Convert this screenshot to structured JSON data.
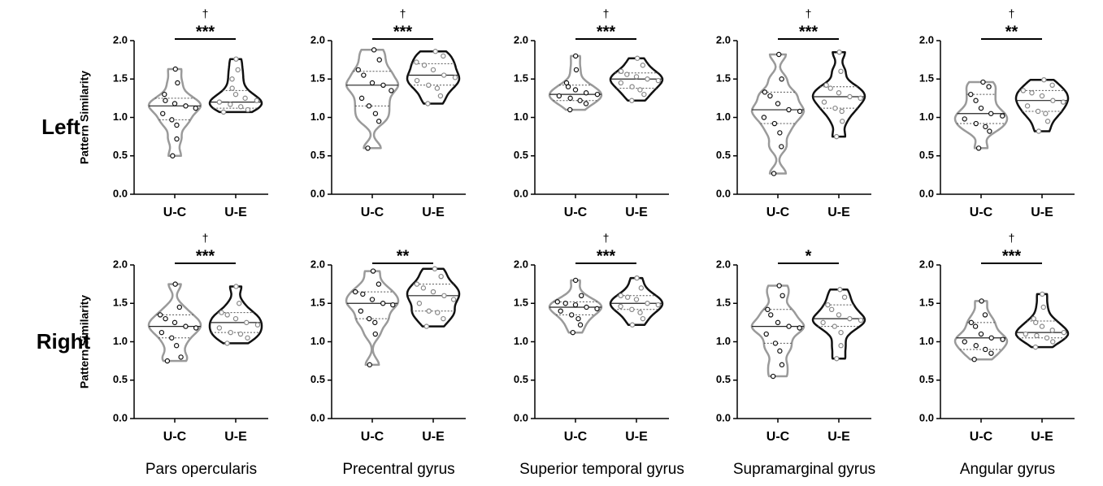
{
  "chart_data": [
    {
      "type": "violin",
      "row_label": "Left",
      "ylabel": "Pattern Similarity",
      "categories": [
        "U-C",
        "U-E"
      ],
      "ylim": [
        0,
        2
      ],
      "yticks": [
        {
          "value": 0,
          "label": "0.0"
        },
        {
          "value": 0.5,
          "label": "0.5"
        },
        {
          "value": 1,
          "label": "1.0"
        },
        {
          "value": 1.5,
          "label": "1.5"
        },
        {
          "value": 2,
          "label": "2.0"
        }
      ],
      "significance": "***",
      "marker": "†",
      "series": [
        {
          "name": "U-C",
          "color": "#9a9a9a",
          "point_color": "#111",
          "points": [
            0.5,
            0.72,
            0.9,
            0.97,
            1.05,
            1.12,
            1.15,
            1.18,
            1.22,
            1.3,
            1.45,
            1.63
          ],
          "median": 1.15,
          "quartiles": [
            0.97,
            1.25
          ]
        },
        {
          "name": "U-E",
          "color": "#111",
          "point_color": "#888",
          "points": [
            1.07,
            1.1,
            1.14,
            1.17,
            1.2,
            1.22,
            1.25,
            1.3,
            1.38,
            1.5,
            1.62,
            1.76
          ],
          "median": 1.2,
          "quartiles": [
            1.12,
            1.35
          ]
        }
      ]
    },
    {
      "type": "violin",
      "categories": [
        "U-C",
        "U-E"
      ],
      "ylim": [
        0,
        2
      ],
      "yticks": [
        {
          "value": 0,
          "label": "0.0"
        },
        {
          "value": 0.5,
          "label": "0.5"
        },
        {
          "value": 1,
          "label": "1.0"
        },
        {
          "value": 1.5,
          "label": "1.5"
        },
        {
          "value": 2,
          "label": "2.0"
        }
      ],
      "significance": "***",
      "marker": "†",
      "series": [
        {
          "name": "U-C",
          "color": "#9a9a9a",
          "point_color": "#111",
          "points": [
            0.6,
            0.95,
            1.05,
            1.15,
            1.25,
            1.35,
            1.42,
            1.45,
            1.55,
            1.62,
            1.75,
            1.88
          ],
          "median": 1.42,
          "quartiles": [
            1.15,
            1.6
          ]
        },
        {
          "name": "U-E",
          "color": "#111",
          "point_color": "#888",
          "points": [
            1.18,
            1.28,
            1.38,
            1.42,
            1.48,
            1.52,
            1.55,
            1.62,
            1.68,
            1.72,
            1.8,
            1.86
          ],
          "median": 1.55,
          "quartiles": [
            1.42,
            1.7
          ]
        }
      ]
    },
    {
      "type": "violin",
      "categories": [
        "U-C",
        "U-E"
      ],
      "ylim": [
        0,
        2
      ],
      "yticks": [
        {
          "value": 0,
          "label": "0.0"
        },
        {
          "value": 0.5,
          "label": "0.5"
        },
        {
          "value": 1,
          "label": "1.0"
        },
        {
          "value": 1.5,
          "label": "1.5"
        },
        {
          "value": 2,
          "label": "2.0"
        }
      ],
      "significance": "***",
      "marker": "†",
      "series": [
        {
          "name": "U-C",
          "color": "#9a9a9a",
          "point_color": "#111",
          "points": [
            1.1,
            1.18,
            1.22,
            1.25,
            1.28,
            1.3,
            1.32,
            1.36,
            1.4,
            1.45,
            1.62,
            1.8
          ],
          "median": 1.3,
          "quartiles": [
            1.22,
            1.42
          ]
        },
        {
          "name": "U-E",
          "color": "#111",
          "point_color": "#888",
          "points": [
            1.22,
            1.3,
            1.36,
            1.4,
            1.45,
            1.48,
            1.5,
            1.53,
            1.56,
            1.6,
            1.68,
            1.77
          ],
          "median": 1.5,
          "quartiles": [
            1.38,
            1.58
          ]
        }
      ]
    },
    {
      "type": "violin",
      "categories": [
        "U-C",
        "U-E"
      ],
      "ylim": [
        0,
        2
      ],
      "yticks": [
        {
          "value": 0,
          "label": "0.0"
        },
        {
          "value": 0.5,
          "label": "0.5"
        },
        {
          "value": 1,
          "label": "1.0"
        },
        {
          "value": 1.5,
          "label": "1.5"
        },
        {
          "value": 2,
          "label": "2.0"
        }
      ],
      "significance": "***",
      "marker": "†",
      "series": [
        {
          "name": "U-C",
          "color": "#9a9a9a",
          "point_color": "#111",
          "points": [
            0.27,
            0.62,
            0.8,
            0.92,
            1.0,
            1.08,
            1.1,
            1.18,
            1.28,
            1.33,
            1.5,
            1.82
          ],
          "median": 1.1,
          "quartiles": [
            0.92,
            1.33
          ]
        },
        {
          "name": "U-E",
          "color": "#111",
          "point_color": "#888",
          "points": [
            0.75,
            0.95,
            1.08,
            1.12,
            1.2,
            1.25,
            1.27,
            1.32,
            1.38,
            1.42,
            1.6,
            1.85
          ],
          "median": 1.27,
          "quartiles": [
            1.12,
            1.4
          ]
        }
      ]
    },
    {
      "type": "violin",
      "categories": [
        "U-C",
        "U-E"
      ],
      "ylim": [
        0,
        2
      ],
      "yticks": [
        {
          "value": 0,
          "label": "0.0"
        },
        {
          "value": 0.5,
          "label": "0.5"
        },
        {
          "value": 1,
          "label": "1.0"
        },
        {
          "value": 1.5,
          "label": "1.5"
        },
        {
          "value": 2,
          "label": "2.0"
        }
      ],
      "significance": "**",
      "marker": "†",
      "series": [
        {
          "name": "U-C",
          "color": "#9a9a9a",
          "point_color": "#111",
          "points": [
            0.6,
            0.82,
            0.88,
            0.92,
            0.98,
            1.02,
            1.05,
            1.12,
            1.22,
            1.3,
            1.4,
            1.46
          ],
          "median": 1.05,
          "quartiles": [
            0.92,
            1.3
          ]
        },
        {
          "name": "U-E",
          "color": "#111",
          "point_color": "#888",
          "points": [
            0.82,
            0.95,
            1.05,
            1.08,
            1.15,
            1.2,
            1.22,
            1.28,
            1.32,
            1.35,
            1.42,
            1.49
          ],
          "median": 1.22,
          "quartiles": [
            1.08,
            1.35
          ]
        }
      ]
    },
    {
      "type": "violin",
      "row_label": "Right",
      "ylabel": "Pattern Similarity",
      "xlabel": "Pars opercularis",
      "categories": [
        "U-C",
        "U-E"
      ],
      "ylim": [
        0,
        2
      ],
      "yticks": [
        {
          "value": 0,
          "label": "0.0"
        },
        {
          "value": 0.5,
          "label": "0.5"
        },
        {
          "value": 1,
          "label": "1.0"
        },
        {
          "value": 1.5,
          "label": "1.5"
        },
        {
          "value": 2,
          "label": "2.0"
        }
      ],
      "significance": "***",
      "marker": "†",
      "series": [
        {
          "name": "U-C",
          "color": "#9a9a9a",
          "point_color": "#111",
          "points": [
            0.75,
            0.8,
            0.95,
            1.05,
            1.12,
            1.18,
            1.2,
            1.25,
            1.3,
            1.35,
            1.45,
            1.75
          ],
          "median": 1.2,
          "quartiles": [
            1.05,
            1.35
          ]
        },
        {
          "name": "U-E",
          "color": "#111",
          "point_color": "#888",
          "points": [
            0.98,
            1.05,
            1.1,
            1.12,
            1.18,
            1.22,
            1.25,
            1.3,
            1.35,
            1.38,
            1.5,
            1.72
          ],
          "median": 1.25,
          "quartiles": [
            1.12,
            1.38
          ]
        }
      ]
    },
    {
      "type": "violin",
      "xlabel": "Precentral gyrus",
      "categories": [
        "U-C",
        "U-E"
      ],
      "ylim": [
        0,
        2
      ],
      "yticks": [
        {
          "value": 0,
          "label": "0.0"
        },
        {
          "value": 0.5,
          "label": "0.5"
        },
        {
          "value": 1,
          "label": "1.0"
        },
        {
          "value": 1.5,
          "label": "1.5"
        },
        {
          "value": 2,
          "label": "2.0"
        }
      ],
      "significance": "**",
      "series": [
        {
          "name": "U-C",
          "color": "#9a9a9a",
          "point_color": "#111",
          "points": [
            0.7,
            1.1,
            1.25,
            1.3,
            1.4,
            1.48,
            1.5,
            1.55,
            1.62,
            1.65,
            1.75,
            1.92
          ],
          "median": 1.5,
          "quartiles": [
            1.3,
            1.65
          ]
        },
        {
          "name": "U-E",
          "color": "#111",
          "point_color": "#888",
          "points": [
            1.2,
            1.3,
            1.38,
            1.4,
            1.5,
            1.55,
            1.6,
            1.65,
            1.7,
            1.75,
            1.85,
            1.95
          ],
          "median": 1.6,
          "quartiles": [
            1.4,
            1.75
          ]
        }
      ]
    },
    {
      "type": "violin",
      "xlabel": "Superior temporal gyrus",
      "categories": [
        "U-C",
        "U-E"
      ],
      "ylim": [
        0,
        2
      ],
      "yticks": [
        {
          "value": 0,
          "label": "0.0"
        },
        {
          "value": 0.5,
          "label": "0.5"
        },
        {
          "value": 1,
          "label": "1.0"
        },
        {
          "value": 1.5,
          "label": "1.5"
        },
        {
          "value": 2,
          "label": "2.0"
        }
      ],
      "significance": "***",
      "marker": "†",
      "series": [
        {
          "name": "U-C",
          "color": "#9a9a9a",
          "point_color": "#111",
          "points": [
            1.12,
            1.22,
            1.3,
            1.35,
            1.4,
            1.43,
            1.45,
            1.48,
            1.5,
            1.52,
            1.6,
            1.8
          ],
          "median": 1.45,
          "quartiles": [
            1.35,
            1.52
          ]
        },
        {
          "name": "U-E",
          "color": "#111",
          "point_color": "#888",
          "points": [
            1.22,
            1.3,
            1.38,
            1.42,
            1.46,
            1.48,
            1.5,
            1.55,
            1.58,
            1.6,
            1.7,
            1.83
          ],
          "median": 1.5,
          "quartiles": [
            1.42,
            1.6
          ]
        }
      ]
    },
    {
      "type": "violin",
      "xlabel": "Supramarginal gyrus",
      "categories": [
        "U-C",
        "U-E"
      ],
      "ylim": [
        0,
        2
      ],
      "yticks": [
        {
          "value": 0,
          "label": "0.0"
        },
        {
          "value": 0.5,
          "label": "0.5"
        },
        {
          "value": 1,
          "label": "1.0"
        },
        {
          "value": 1.5,
          "label": "1.5"
        },
        {
          "value": 2,
          "label": "2.0"
        }
      ],
      "significance": "*",
      "series": [
        {
          "name": "U-C",
          "color": "#9a9a9a",
          "point_color": "#111",
          "points": [
            0.55,
            0.7,
            0.88,
            0.98,
            1.1,
            1.18,
            1.2,
            1.25,
            1.35,
            1.42,
            1.6,
            1.73
          ],
          "median": 1.2,
          "quartiles": [
            0.98,
            1.42
          ]
        },
        {
          "name": "U-E",
          "color": "#111",
          "point_color": "#888",
          "points": [
            0.78,
            0.95,
            1.12,
            1.2,
            1.25,
            1.28,
            1.3,
            1.35,
            1.42,
            1.48,
            1.58,
            1.68
          ],
          "median": 1.3,
          "quartiles": [
            1.2,
            1.48
          ]
        }
      ]
    },
    {
      "type": "violin",
      "xlabel": "Angular gyrus",
      "categories": [
        "U-C",
        "U-E"
      ],
      "ylim": [
        0,
        2
      ],
      "yticks": [
        {
          "value": 0,
          "label": "0.0"
        },
        {
          "value": 0.5,
          "label": "0.5"
        },
        {
          "value": 1,
          "label": "1.0"
        },
        {
          "value": 1.5,
          "label": "1.5"
        },
        {
          "value": 2,
          "label": "2.0"
        }
      ],
      "significance": "***",
      "marker": "†",
      "series": [
        {
          "name": "U-C",
          "color": "#9a9a9a",
          "point_color": "#111",
          "points": [
            0.77,
            0.85,
            0.9,
            0.95,
            1.0,
            1.03,
            1.05,
            1.1,
            1.2,
            1.25,
            1.35,
            1.53
          ],
          "median": 1.05,
          "quartiles": [
            0.9,
            1.25
          ]
        },
        {
          "name": "U-E",
          "color": "#111",
          "point_color": "#888",
          "points": [
            0.93,
            1.0,
            1.05,
            1.08,
            1.1,
            1.12,
            1.15,
            1.2,
            1.25,
            1.3,
            1.45,
            1.62
          ],
          "median": 1.12,
          "quartiles": [
            1.05,
            1.27
          ]
        }
      ]
    }
  ]
}
